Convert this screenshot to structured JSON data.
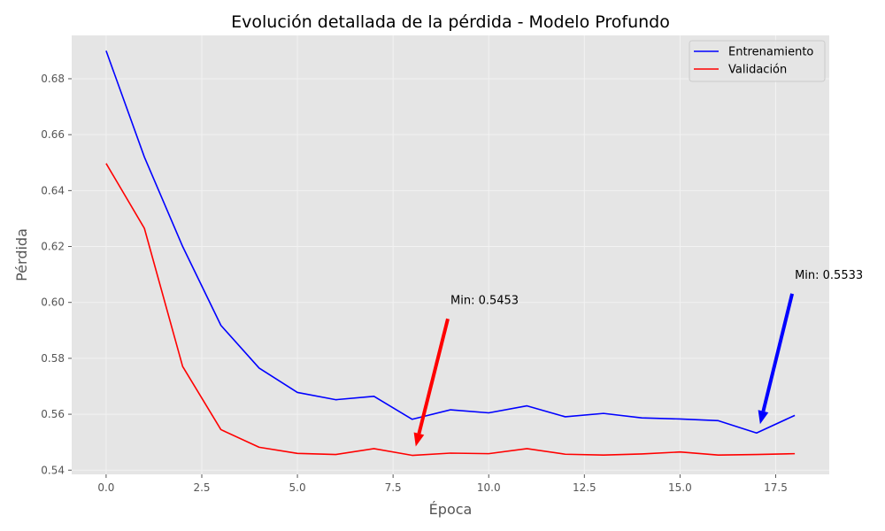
{
  "chart_data": {
    "type": "line",
    "title": "Evolución detallada de la pérdida - Modelo Profundo",
    "xlabel": "Época",
    "ylabel": "Pérdida",
    "xlim": [
      -0.9,
      18.9
    ],
    "ylim": [
      0.5385,
      0.6955
    ],
    "xticks": [
      0,
      2.5,
      5,
      7.5,
      10,
      12.5,
      15,
      17.5
    ],
    "xtick_labels": [
      "0.0",
      "2.5",
      "5.0",
      "7.5",
      "10.0",
      "12.5",
      "15.0",
      "17.5"
    ],
    "yticks": [
      0.54,
      0.56,
      0.58,
      0.6,
      0.62,
      0.64,
      0.66,
      0.68
    ],
    "ytick_labels": [
      "0.54",
      "0.56",
      "0.58",
      "0.60",
      "0.62",
      "0.64",
      "0.66",
      "0.68"
    ],
    "grid": true,
    "legend_position": "top-right",
    "x": [
      0,
      1,
      2,
      3,
      4,
      5,
      6,
      7,
      8,
      9,
      10,
      11,
      12,
      13,
      14,
      15,
      16,
      17,
      18
    ],
    "series": [
      {
        "name": "Entrenamiento",
        "color": "#0000ff",
        "values": [
          0.69,
          0.652,
          0.62,
          0.5918,
          0.5765,
          0.5678,
          0.5652,
          0.5664,
          0.5582,
          0.5616,
          0.5605,
          0.563,
          0.5591,
          0.5603,
          0.5587,
          0.5583,
          0.5577,
          0.5533,
          0.5596
        ]
      },
      {
        "name": "Validación",
        "color": "#ff0000",
        "values": [
          0.6497,
          0.6265,
          0.5771,
          0.5545,
          0.5482,
          0.546,
          0.5456,
          0.5477,
          0.5453,
          0.5461,
          0.5459,
          0.5477,
          0.5457,
          0.5454,
          0.5458,
          0.5465,
          0.5454,
          0.5456,
          0.5459
        ]
      }
    ],
    "annotations": [
      {
        "text": "Min: 0.5453",
        "color": "#ff0000",
        "point": [
          8,
          0.5453
        ],
        "text_at": [
          9,
          0.5995
        ]
      },
      {
        "text": "Min: 0.5533",
        "color": "#0000ff",
        "point": [
          17,
          0.5533
        ],
        "text_at": [
          18,
          0.6085
        ]
      }
    ]
  }
}
